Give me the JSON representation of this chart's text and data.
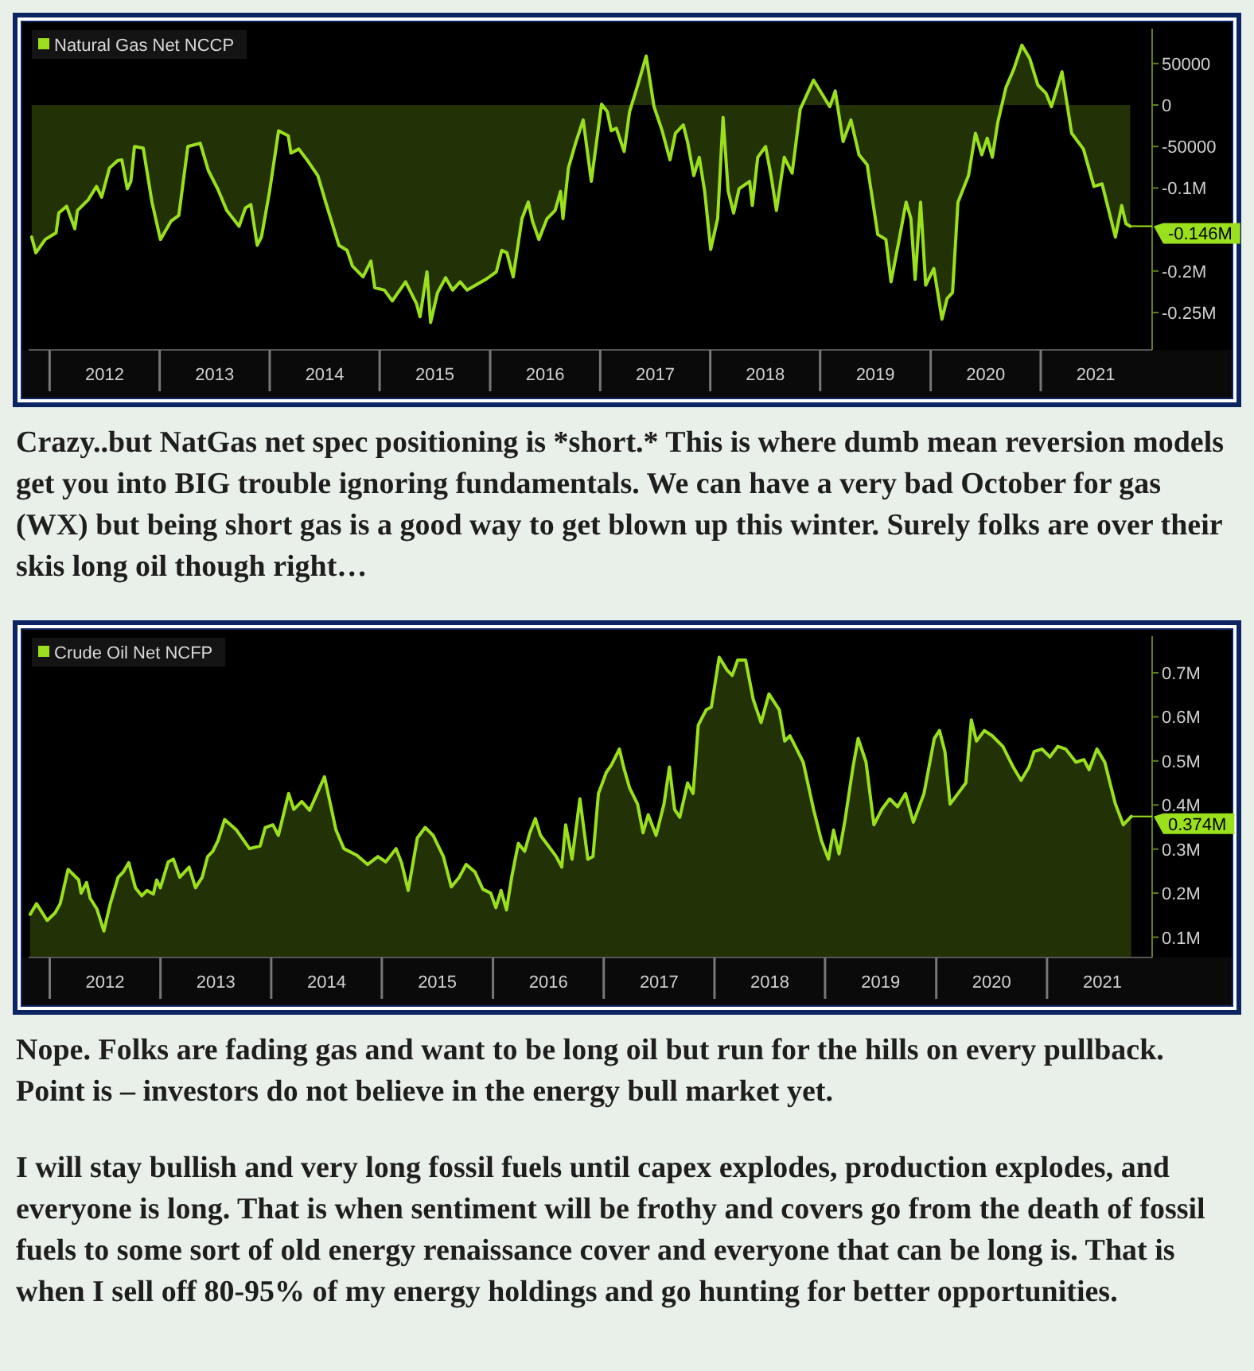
{
  "chart_data": [
    {
      "type": "area",
      "legend": "top left",
      "xlim": [
        "2011-10-23",
        "2022-01-04"
      ],
      "ylim": [
        -295000,
        92000
      ],
      "yticks": [
        50000,
        0,
        -50000,
        {
          "value": -100000,
          "label": "-0.1M"
        },
        {
          "value": -200000,
          "label": "-0.2M"
        },
        {
          "value": -250000,
          "label": "-0.25M"
        }
      ],
      "xticks": [
        {
          "value": "2012-07-01",
          "label": "2012"
        },
        {
          "value": "2013-07-01",
          "label": "2013"
        },
        {
          "value": "2014-07-01",
          "label": "2014"
        },
        {
          "value": "2015-07-01",
          "label": "2015"
        },
        {
          "value": "2016-07-01",
          "label": "2016"
        },
        {
          "value": "2017-07-01",
          "label": "2017"
        },
        {
          "value": "2018-07-01",
          "label": "2018"
        },
        {
          "value": "2019-07-01",
          "label": "2019"
        },
        {
          "value": "2020-07-01",
          "label": "2020"
        },
        {
          "value": "2021-07-01",
          "label": "2021"
        }
      ],
      "x": [
        "2011-11-02",
        "2011-11-16",
        "2011-12-17",
        "2012-01-22",
        "2012-01-31",
        "2012-02-26",
        "2012-03-24",
        "2012-04-02",
        "2012-05-08",
        "2012-06-04",
        "2012-06-21",
        "2012-07-17",
        "2012-08-13",
        "2012-08-27",
        "2012-09-14",
        "2012-09-26",
        "2012-10-08",
        "2012-11-06",
        "2012-12-05",
        "2013-01-02",
        "2013-02-06",
        "2013-03-04",
        "2013-04-03",
        "2013-05-14",
        "2013-06-10",
        "2013-07-11",
        "2013-08-10",
        "2013-09-20",
        "2013-10-11",
        "2013-10-29",
        "2013-11-19",
        "2013-12-03",
        "2013-12-30",
        "2014-01-29",
        "2014-03-02",
        "2014-03-11",
        "2014-04-06",
        "2014-05-03",
        "2014-06-08",
        "2014-07-04",
        "2014-08-17",
        "2014-09-13",
        "2014-10-01",
        "2014-11-05",
        "2014-12-01",
        "2014-12-14",
        "2015-01-15",
        "2015-02-10",
        "2015-03-26",
        "2015-05-01",
        "2015-05-13",
        "2015-06-05",
        "2015-06-17",
        "2015-07-10",
        "2015-08-06",
        "2015-08-29",
        "2015-09-23",
        "2015-10-16",
        "2015-12-17",
        "2016-01-21",
        "2016-02-08",
        "2016-02-25",
        "2016-03-17",
        "2016-04-15",
        "2016-05-06",
        "2016-05-20",
        "2016-06-10",
        "2016-07-07",
        "2016-08-03",
        "2016-08-21",
        "2016-08-29",
        "2016-09-16",
        "2016-10-09",
        "2016-11-04",
        "2016-12-01",
        "2017-01-04",
        "2017-01-23",
        "2017-02-05",
        "2017-02-22",
        "2017-03-20",
        "2017-04-07",
        "2017-05-04",
        "2017-06-01",
        "2017-06-27",
        "2017-07-24",
        "2017-08-19",
        "2017-09-06",
        "2017-10-02",
        "2017-10-16",
        "2017-11-06",
        "2017-11-24",
        "2017-12-12",
        "2018-01-01",
        "2018-01-24",
        "2018-02-11",
        "2018-02-28",
        "2018-03-18",
        "2018-04-05",
        "2018-05-10",
        "2018-05-19",
        "2018-06-06",
        "2018-07-02",
        "2018-07-20",
        "2018-08-07",
        "2018-09-02",
        "2018-09-28",
        "2018-10-25",
        "2018-12-08",
        "2019-01-04",
        "2019-01-31",
        "2019-02-18",
        "2019-03-16",
        "2019-04-11",
        "2019-05-08",
        "2019-06-04",
        "2019-07-09",
        "2019-08-05",
        "2019-08-22",
        "2019-09-18",
        "2019-10-11",
        "2019-10-27",
        "2019-11-10",
        "2019-11-28",
        "2019-12-15",
        "2020-01-11",
        "2020-02-07",
        "2020-02-24",
        "2020-03-13",
        "2020-03-31",
        "2020-05-05",
        "2020-05-28",
        "2020-06-18",
        "2020-07-06",
        "2020-07-23",
        "2020-08-10",
        "2020-09-06",
        "2020-10-02",
        "2020-10-29",
        "2020-11-24",
        "2020-12-21",
        "2021-01-17",
        "2021-02-04",
        "2021-03-11",
        "2021-04-12",
        "2021-05-21",
        "2021-06-25",
        "2021-07-22",
        "2021-09-04",
        "2021-09-25",
        "2021-10-09",
        "2021-10-23"
      ],
      "series": [
        {
          "name": "Natural Gas Net NCCP",
          "color": "#9be01c",
          "values": [
            -159000,
            -178000,
            -162000,
            -154000,
            -130000,
            -122000,
            -149000,
            -127000,
            -114000,
            -98000,
            -111000,
            -76000,
            -67000,
            -66000,
            -101000,
            -92000,
            -50000,
            -52000,
            -117000,
            -162000,
            -140000,
            -133000,
            -50000,
            -46000,
            -79000,
            -101000,
            -127000,
            -146000,
            -124000,
            -120000,
            -169000,
            -159000,
            -104000,
            -31000,
            -37000,
            -58000,
            -53000,
            -66000,
            -85000,
            -117000,
            -169000,
            -175000,
            -194000,
            -207000,
            -188000,
            -220000,
            -223000,
            -236000,
            -213000,
            -239000,
            -255000,
            -201000,
            -262000,
            -226000,
            -208000,
            -223000,
            -213000,
            -223000,
            -210000,
            -201000,
            -175000,
            -178000,
            -207000,
            -137000,
            -117000,
            -140000,
            -162000,
            -137000,
            -127000,
            -104000,
            -137000,
            -76000,
            -47000,
            -18000,
            -92000,
            1000,
            -8000,
            -31000,
            -28000,
            -56000,
            -8000,
            24000,
            59000,
            -2000,
            -31000,
            -66000,
            -34000,
            -24000,
            -44000,
            -85000,
            -63000,
            -104000,
            -174000,
            -137000,
            -15000,
            -104000,
            -130000,
            -101000,
            -92000,
            -121000,
            -63000,
            -50000,
            -85000,
            -127000,
            -63000,
            -82000,
            -5000,
            30000,
            14000,
            -2000,
            17000,
            -44000,
            -18000,
            -60000,
            -72000,
            -156000,
            -162000,
            -213000,
            -162000,
            -117000,
            -137000,
            -210000,
            -117000,
            -217000,
            -197000,
            -258000,
            -233000,
            -226000,
            -117000,
            -85000,
            -34000,
            -60000,
            -40000,
            -63000,
            -21000,
            21000,
            43000,
            72000,
            56000,
            24000,
            14000,
            -2000,
            40000,
            -34000,
            -53000,
            -98000,
            -95000,
            -159000,
            -121000,
            -143000,
            -146000
          ]
        }
      ],
      "annotations": [
        {
          "text": "-0.146M",
          "x": "2021-10-23",
          "y": -146000
        },
        "Crazy..but NatGas net spec positioning is *short.* This is where dumb mean reversion models get you into BIG trouble ignoring fundamentals. We can have a very bad October for gas (WX) but being short gas is a good way to get blown up this winter. Surely folks are over their skis long oil though right…"
      ]
    },
    {
      "type": "area",
      "legend": "top left",
      "xlim": [
        "2011-10-23",
        "2021-12-12"
      ],
      "ylim": [
        54000,
        783000
      ],
      "yticks": [
        {
          "value": 100000,
          "label": "0.1M"
        },
        {
          "value": 200000,
          "label": "0.2M"
        },
        {
          "value": 300000,
          "label": "0.3M"
        },
        {
          "value": 400000,
          "label": "0.4M"
        },
        {
          "value": 500000,
          "label": "0.5M"
        },
        {
          "value": 600000,
          "label": "0.6M"
        },
        {
          "value": 700000,
          "label": "0.7M"
        }
      ],
      "xticks": [
        {
          "value": "2012-07-01",
          "label": "2012"
        },
        {
          "value": "2013-07-01",
          "label": "2013"
        },
        {
          "value": "2014-07-01",
          "label": "2014"
        },
        {
          "value": "2015-07-01",
          "label": "2015"
        },
        {
          "value": "2016-07-01",
          "label": "2016"
        },
        {
          "value": "2017-07-01",
          "label": "2017"
        },
        {
          "value": "2018-07-01",
          "label": "2018"
        },
        {
          "value": "2019-07-01",
          "label": "2019"
        },
        {
          "value": "2020-07-01",
          "label": "2020"
        },
        {
          "value": "2021-07-01",
          "label": "2021"
        }
      ],
      "x": [
        "2011-10-28",
        "2011-11-18",
        "2011-12-23",
        "2012-01-18",
        "2012-02-04",
        "2012-03-01",
        "2012-04-05",
        "2012-04-13",
        "2012-05-01",
        "2012-05-13",
        "2012-06-04",
        "2012-06-27",
        "2012-07-18",
        "2012-08-13",
        "2012-08-30",
        "2012-09-17",
        "2012-10-09",
        "2012-10-30",
        "2012-11-16",
        "2012-12-07",
        "2012-12-18",
        "2012-12-30",
        "2013-01-25",
        "2013-02-11",
        "2013-03-04",
        "2013-04-04",
        "2013-04-25",
        "2013-05-17",
        "2013-06-04",
        "2013-06-21",
        "2013-07-08",
        "2013-07-30",
        "2013-09-07",
        "2013-10-20",
        "2013-11-24",
        "2013-12-11",
        "2014-01-05",
        "2014-01-23",
        "2014-02-26",
        "2014-03-15",
        "2014-04-10",
        "2014-05-06",
        "2014-05-27",
        "2014-06-24",
        "2014-07-06",
        "2014-08-01",
        "2014-08-27",
        "2014-10-09",
        "2014-11-13",
        "2014-12-17",
        "2015-01-12",
        "2015-02-15",
        "2015-03-05",
        "2015-03-27",
        "2015-04-26",
        "2015-05-22",
        "2015-06-17",
        "2015-07-21",
        "2015-08-16",
        "2015-09-11",
        "2015-10-04",
        "2015-11-02",
        "2015-11-28",
        "2015-12-24",
        "2016-01-10",
        "2016-01-27",
        "2016-02-14",
        "2016-03-02",
        "2016-03-24",
        "2016-04-14",
        "2016-05-01",
        "2016-05-19",
        "2016-06-05",
        "2016-07-01",
        "2016-07-27",
        "2016-08-14",
        "2016-08-27",
        "2016-09-17",
        "2016-10-13",
        "2016-11-08",
        "2016-11-25",
        "2016-12-13",
        "2017-01-08",
        "2017-01-25",
        "2017-02-20",
        "2017-03-06",
        "2017-03-26",
        "2017-04-21",
        "2017-05-09",
        "2017-05-26",
        "2017-06-21",
        "2017-07-17",
        "2017-08-04",
        "2017-08-21",
        "2017-09-07",
        "2017-10-03",
        "2017-10-21",
        "2017-11-07",
        "2017-12-03",
        "2017-12-20",
        "2018-01-15",
        "2018-02-10",
        "2018-02-27",
        "2018-03-17",
        "2018-04-12",
        "2018-05-07",
        "2018-06-02",
        "2018-06-28",
        "2018-08-01",
        "2018-08-19",
        "2018-09-05",
        "2018-09-23",
        "2018-10-19",
        "2018-11-22",
        "2018-12-18",
        "2019-01-10",
        "2019-01-27",
        "2019-02-14",
        "2019-03-06",
        "2019-04-01",
        "2019-04-18",
        "2019-05-14",
        "2019-06-09",
        "2019-07-05",
        "2019-07-31",
        "2019-08-26",
        "2019-09-21",
        "2019-10-17",
        "2019-11-21",
        "2019-12-25",
        "2020-01-11",
        "2020-01-29",
        "2020-02-15",
        "2020-03-12",
        "2020-04-07",
        "2020-04-25",
        "2020-05-12",
        "2020-06-07",
        "2020-07-03",
        "2020-08-07",
        "2020-09-10",
        "2020-10-06",
        "2020-11-01",
        "2020-11-18",
        "2020-12-14",
        "2021-01-09",
        "2021-02-04",
        "2021-03-02",
        "2021-04-05",
        "2021-05-01",
        "2021-05-18",
        "2021-06-13",
        "2021-07-09",
        "2021-07-26",
        "2021-08-13",
        "2021-09-08",
        "2021-10-04"
      ],
      "series": [
        {
          "name": "Crude Oil Net NCFP",
          "color": "#9be01c",
          "values": [
            152000,
            176000,
            138000,
            155000,
            176000,
            254000,
            230000,
            200000,
            224000,
            188000,
            164000,
            114000,
            176000,
            236000,
            248000,
            269000,
            212000,
            194000,
            206000,
            198000,
            230000,
            212000,
            271000,
            277000,
            236000,
            259000,
            212000,
            236000,
            283000,
            295000,
            319000,
            367000,
            343000,
            301000,
            307000,
            349000,
            355000,
            331000,
            426000,
            390000,
            408000,
            388000,
            420000,
            464000,
            426000,
            343000,
            301000,
            286000,
            265000,
            283000,
            271000,
            301000,
            269000,
            206000,
            325000,
            349000,
            331000,
            283000,
            214000,
            236000,
            265000,
            248000,
            209000,
            200000,
            167000,
            206000,
            162000,
            236000,
            313000,
            295000,
            337000,
            369000,
            331000,
            307000,
            283000,
            259000,
            355000,
            277000,
            414000,
            277000,
            283000,
            426000,
            474000,
            491000,
            527000,
            486000,
            438000,
            402000,
            337000,
            378000,
            331000,
            402000,
            486000,
            390000,
            372000,
            450000,
            426000,
            581000,
            616000,
            622000,
            735000,
            706000,
            694000,
            729000,
            729000,
            640000,
            587000,
            652000,
            616000,
            545000,
            557000,
            533000,
            497000,
            390000,
            319000,
            277000,
            343000,
            289000,
            367000,
            486000,
            551000,
            497000,
            355000,
            390000,
            414000,
            396000,
            426000,
            361000,
            426000,
            551000,
            569000,
            521000,
            402000,
            426000,
            450000,
            593000,
            545000,
            569000,
            557000,
            533000,
            486000,
            456000,
            486000,
            521000,
            527000,
            509000,
            533000,
            527000,
            497000,
            503000,
            480000,
            527000,
            497000,
            450000,
            402000,
            355000,
            374000
          ]
        }
      ],
      "annotations": [
        {
          "text": "0.374M",
          "x": "2021-10-04",
          "y": 374000
        },
        "Nope. Folks are fading gas and want to be long oil but run for the hills on every pullback. Point is – investors do not believe in the energy bull market yet.",
        "I will stay bullish and very long fossil fuels until capex explodes, production explodes, and everyone is long. That is when sentiment will be frothy and covers go from the death of fossil fuels to some sort of old energy renaissance cover and everyone that can be long is. That is when I sell off 80-95% of my energy holdings and go hunting for better opportunities."
      ]
    }
  ]
}
